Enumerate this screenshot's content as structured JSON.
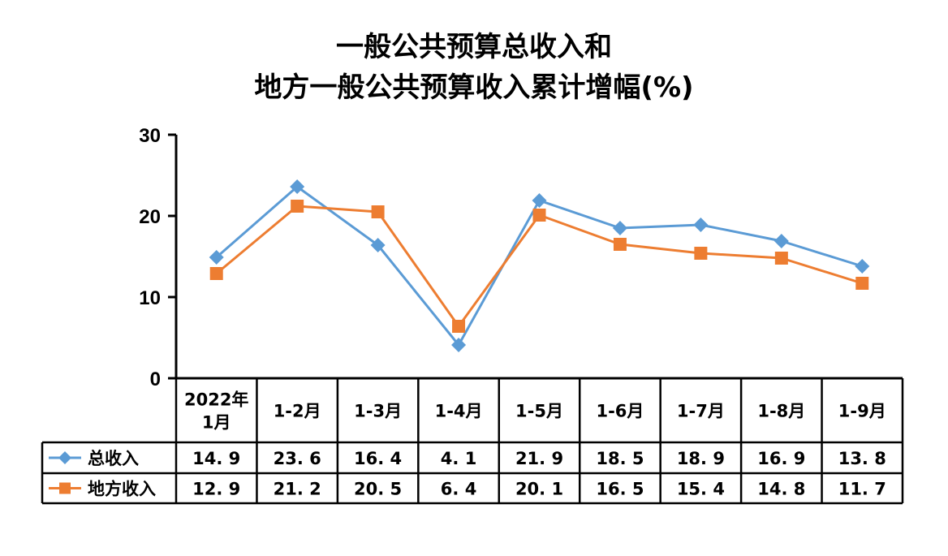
{
  "chart_data": {
    "type": "line",
    "title_lines": [
      "一般公共预算总收入和",
      "地方一般公共预算收入累计增幅(%)"
    ],
    "categories": [
      "2022年\n1月",
      "1-2月",
      "1-3月",
      "1-4月",
      "1-5月",
      "1-6月",
      "1-7月",
      "1-8月",
      "1-9月"
    ],
    "series": [
      {
        "name": "总收入",
        "values": [
          14.9,
          23.6,
          16.4,
          4.1,
          21.9,
          18.5,
          18.9,
          16.9,
          13.8
        ],
        "color": "#5b9bd5",
        "marker": "diamond"
      },
      {
        "name": "地方收入",
        "values": [
          12.9,
          21.2,
          20.5,
          6.4,
          20.1,
          16.5,
          15.4,
          14.8,
          11.7
        ],
        "color": "#ed7d31",
        "marker": "square"
      }
    ],
    "value_labels": [
      [
        "14. 9",
        "23. 6",
        "16. 4",
        "4. 1",
        "21. 9",
        "18. 5",
        "18. 9",
        "16. 9",
        "13. 8"
      ],
      [
        "12. 9",
        "21. 2",
        "20. 5",
        "6. 4",
        "20. 1",
        "16. 5",
        "15. 4",
        "14. 8",
        "11. 7"
      ]
    ],
    "yticks": [
      "0",
      "10",
      "20",
      "30"
    ],
    "ylim": [
      0,
      30
    ],
    "grid": false,
    "data_table": true
  }
}
